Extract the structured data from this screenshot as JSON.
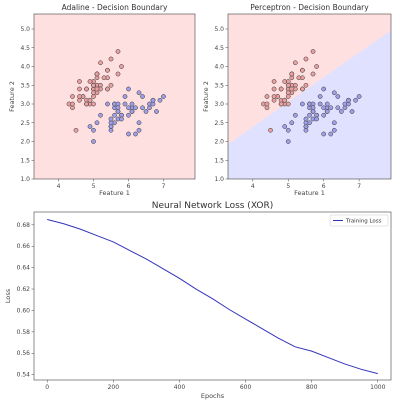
{
  "chart_data": [
    {
      "type": "scatter",
      "title": "Adaline - Decision Boundary",
      "xlabel": "Feature 1",
      "ylabel": "Feature 2",
      "xlim": [
        3.3,
        7.9
      ],
      "ylim": [
        1.0,
        5.4
      ],
      "xticks": [
        4,
        5,
        6,
        7
      ],
      "yticks": [
        1.0,
        1.5,
        2.0,
        2.5,
        3.0,
        3.5,
        4.0,
        4.5,
        5.0
      ],
      "background": "full-red",
      "colors": {
        "region_a": "#ffe0e0",
        "region_b": "#e0e0ff",
        "class_a": "#e8a0a0",
        "class_b": "#a0a0e8",
        "edge": "#333333"
      },
      "series": [
        {
          "points": [
            [
              5.1,
              3.5
            ],
            [
              4.9,
              3.0
            ],
            [
              4.7,
              3.2
            ],
            [
              4.6,
              3.1
            ],
            [
              5.0,
              3.6
            ],
            [
              5.4,
              3.9
            ],
            [
              4.6,
              3.4
            ],
            [
              5.0,
              3.4
            ],
            [
              4.4,
              2.9
            ],
            [
              4.9,
              3.1
            ],
            [
              5.4,
              3.7
            ],
            [
              4.8,
              3.4
            ],
            [
              4.8,
              3.0
            ],
            [
              4.3,
              3.0
            ],
            [
              5.8,
              4.0
            ],
            [
              5.7,
              4.4
            ],
            [
              5.4,
              3.9
            ],
            [
              5.1,
              3.5
            ],
            [
              5.7,
              3.8
            ],
            [
              5.1,
              3.8
            ],
            [
              5.4,
              3.4
            ],
            [
              5.1,
              3.7
            ],
            [
              4.6,
              3.6
            ],
            [
              5.1,
              3.3
            ],
            [
              4.8,
              3.4
            ],
            [
              5.0,
              3.0
            ],
            [
              5.0,
              3.4
            ],
            [
              5.2,
              3.5
            ],
            [
              5.2,
              3.4
            ],
            [
              4.7,
              3.2
            ],
            [
              4.8,
              3.1
            ],
            [
              5.4,
              3.4
            ],
            [
              5.2,
              4.1
            ],
            [
              5.5,
              4.2
            ],
            [
              4.9,
              3.1
            ],
            [
              5.0,
              3.2
            ],
            [
              5.5,
              3.5
            ],
            [
              4.9,
              3.6
            ],
            [
              4.4,
              3.0
            ],
            [
              5.1,
              3.4
            ],
            [
              5.0,
              3.5
            ],
            [
              4.5,
              2.3
            ],
            [
              4.4,
              3.2
            ],
            [
              5.0,
              3.5
            ],
            [
              5.1,
              3.8
            ],
            [
              4.8,
              3.0
            ],
            [
              5.1,
              3.8
            ],
            [
              4.6,
              3.2
            ],
            [
              5.3,
              3.7
            ],
            [
              5.0,
              3.3
            ]
          ]
        },
        {
          "points": [
            [
              7.0,
              3.2
            ],
            [
              6.4,
              3.2
            ],
            [
              6.9,
              3.1
            ],
            [
              5.5,
              2.3
            ],
            [
              6.5,
              2.8
            ],
            [
              5.7,
              2.8
            ],
            [
              6.3,
              3.3
            ],
            [
              4.9,
              2.4
            ],
            [
              6.6,
              2.9
            ],
            [
              5.2,
              2.7
            ],
            [
              5.0,
              2.0
            ],
            [
              5.9,
              3.0
            ],
            [
              6.0,
              2.2
            ],
            [
              6.1,
              2.9
            ],
            [
              5.6,
              2.9
            ],
            [
              6.7,
              3.1
            ],
            [
              5.6,
              3.0
            ],
            [
              5.8,
              2.7
            ],
            [
              6.2,
              2.2
            ],
            [
              5.6,
              2.5
            ],
            [
              5.9,
              3.2
            ],
            [
              6.1,
              2.8
            ],
            [
              6.3,
              2.5
            ],
            [
              6.1,
              2.8
            ],
            [
              6.4,
              2.9
            ],
            [
              6.6,
              3.0
            ],
            [
              6.8,
              2.8
            ],
            [
              6.7,
              3.0
            ],
            [
              6.0,
              2.9
            ],
            [
              5.7,
              2.6
            ],
            [
              5.5,
              2.4
            ],
            [
              5.5,
              2.4
            ],
            [
              5.8,
              2.7
            ],
            [
              6.0,
              2.7
            ],
            [
              5.4,
              3.0
            ],
            [
              6.0,
              3.4
            ],
            [
              6.7,
              3.1
            ],
            [
              6.3,
              2.3
            ],
            [
              5.6,
              3.0
            ],
            [
              5.5,
              2.5
            ],
            [
              5.5,
              2.6
            ],
            [
              6.1,
              3.0
            ],
            [
              5.8,
              2.6
            ],
            [
              5.0,
              2.3
            ],
            [
              5.6,
              2.7
            ],
            [
              5.7,
              3.0
            ],
            [
              5.7,
              2.9
            ],
            [
              6.2,
              2.9
            ],
            [
              5.1,
              2.5
            ],
            [
              5.7,
              2.8
            ]
          ]
        }
      ]
    },
    {
      "type": "scatter",
      "title": "Perceptron - Decision Boundary",
      "xlabel": "Feature 1",
      "ylabel": "Feature 2",
      "xlim": [
        3.3,
        7.9
      ],
      "ylim": [
        1.0,
        5.4
      ],
      "xticks": [
        4,
        5,
        6,
        7
      ],
      "yticks": [
        1.0,
        1.5,
        2.0,
        2.5,
        3.0,
        3.5,
        4.0,
        4.5,
        5.0
      ],
      "background": "linear-boundary",
      "boundary": {
        "slope": 0.66,
        "intercept": -0.25
      },
      "colors": {
        "region_a": "#ffe0e0",
        "region_b": "#e0e0ff",
        "class_a": "#e8a0a0",
        "class_b": "#a0a0e8",
        "edge": "#333333"
      },
      "series": [
        {
          "points": [
            [
              5.1,
              3.5
            ],
            [
              4.9,
              3.0
            ],
            [
              4.7,
              3.2
            ],
            [
              4.6,
              3.1
            ],
            [
              5.0,
              3.6
            ],
            [
              5.4,
              3.9
            ],
            [
              4.6,
              3.4
            ],
            [
              5.0,
              3.4
            ],
            [
              4.4,
              2.9
            ],
            [
              4.9,
              3.1
            ],
            [
              5.4,
              3.7
            ],
            [
              4.8,
              3.4
            ],
            [
              4.8,
              3.0
            ],
            [
              4.3,
              3.0
            ],
            [
              5.8,
              4.0
            ],
            [
              5.7,
              4.4
            ],
            [
              5.4,
              3.9
            ],
            [
              5.1,
              3.5
            ],
            [
              5.7,
              3.8
            ],
            [
              5.1,
              3.8
            ],
            [
              5.4,
              3.4
            ],
            [
              5.1,
              3.7
            ],
            [
              4.6,
              3.6
            ],
            [
              5.1,
              3.3
            ],
            [
              4.8,
              3.4
            ],
            [
              5.0,
              3.0
            ],
            [
              5.0,
              3.4
            ],
            [
              5.2,
              3.5
            ],
            [
              5.2,
              3.4
            ],
            [
              4.7,
              3.2
            ],
            [
              4.8,
              3.1
            ],
            [
              5.4,
              3.4
            ],
            [
              5.2,
              4.1
            ],
            [
              5.5,
              4.2
            ],
            [
              4.9,
              3.1
            ],
            [
              5.0,
              3.2
            ],
            [
              5.5,
              3.5
            ],
            [
              4.9,
              3.6
            ],
            [
              4.4,
              3.0
            ],
            [
              5.1,
              3.4
            ],
            [
              5.0,
              3.5
            ],
            [
              4.5,
              2.3
            ],
            [
              4.4,
              3.2
            ],
            [
              5.0,
              3.5
            ],
            [
              5.1,
              3.8
            ],
            [
              4.8,
              3.0
            ],
            [
              5.1,
              3.8
            ],
            [
              4.6,
              3.2
            ],
            [
              5.3,
              3.7
            ],
            [
              5.0,
              3.3
            ]
          ]
        },
        {
          "points": [
            [
              7.0,
              3.2
            ],
            [
              6.4,
              3.2
            ],
            [
              6.9,
              3.1
            ],
            [
              5.5,
              2.3
            ],
            [
              6.5,
              2.8
            ],
            [
              5.7,
              2.8
            ],
            [
              6.3,
              3.3
            ],
            [
              4.9,
              2.4
            ],
            [
              6.6,
              2.9
            ],
            [
              5.2,
              2.7
            ],
            [
              5.0,
              2.0
            ],
            [
              5.9,
              3.0
            ],
            [
              6.0,
              2.2
            ],
            [
              6.1,
              2.9
            ],
            [
              5.6,
              2.9
            ],
            [
              6.7,
              3.1
            ],
            [
              5.6,
              3.0
            ],
            [
              5.8,
              2.7
            ],
            [
              6.2,
              2.2
            ],
            [
              5.6,
              2.5
            ],
            [
              5.9,
              3.2
            ],
            [
              6.1,
              2.8
            ],
            [
              6.3,
              2.5
            ],
            [
              6.1,
              2.8
            ],
            [
              6.4,
              2.9
            ],
            [
              6.6,
              3.0
            ],
            [
              6.8,
              2.8
            ],
            [
              6.7,
              3.0
            ],
            [
              6.0,
              2.9
            ],
            [
              5.7,
              2.6
            ],
            [
              5.5,
              2.4
            ],
            [
              5.5,
              2.4
            ],
            [
              5.8,
              2.7
            ],
            [
              6.0,
              2.7
            ],
            [
              5.4,
              3.0
            ],
            [
              6.0,
              3.4
            ],
            [
              6.7,
              3.1
            ],
            [
              6.3,
              2.3
            ],
            [
              5.6,
              3.0
            ],
            [
              5.5,
              2.5
            ],
            [
              5.5,
              2.6
            ],
            [
              6.1,
              3.0
            ],
            [
              5.8,
              2.6
            ],
            [
              5.0,
              2.3
            ],
            [
              5.6,
              2.7
            ],
            [
              5.7,
              3.0
            ],
            [
              5.7,
              2.9
            ],
            [
              6.2,
              2.9
            ],
            [
              5.1,
              2.5
            ],
            [
              5.7,
              2.8
            ]
          ]
        }
      ]
    },
    {
      "type": "line",
      "title": "Neural Network Loss (XOR)",
      "xlabel": "Epochs",
      "ylabel": "Loss",
      "xlim": [
        -40,
        1040
      ],
      "ylim": [
        0.535,
        0.692
      ],
      "xticks": [
        0,
        200,
        400,
        600,
        800,
        1000
      ],
      "yticks": [
        0.54,
        0.56,
        0.58,
        0.6,
        0.62,
        0.64,
        0.66,
        0.68
      ],
      "legend_position": "top-right",
      "line_color": "#3333bb",
      "series": [
        {
          "name": "Training Loss",
          "x": [
            0,
            50,
            100,
            150,
            200,
            250,
            300,
            350,
            400,
            450,
            500,
            550,
            600,
            650,
            700,
            750,
            800,
            850,
            900,
            950,
            1000
          ],
          "y": [
            0.685,
            0.681,
            0.676,
            0.67,
            0.664,
            0.656,
            0.648,
            0.639,
            0.63,
            0.62,
            0.611,
            0.601,
            0.592,
            0.583,
            0.574,
            0.566,
            0.562,
            0.556,
            0.55,
            0.545,
            0.541
          ]
        }
      ]
    }
  ]
}
